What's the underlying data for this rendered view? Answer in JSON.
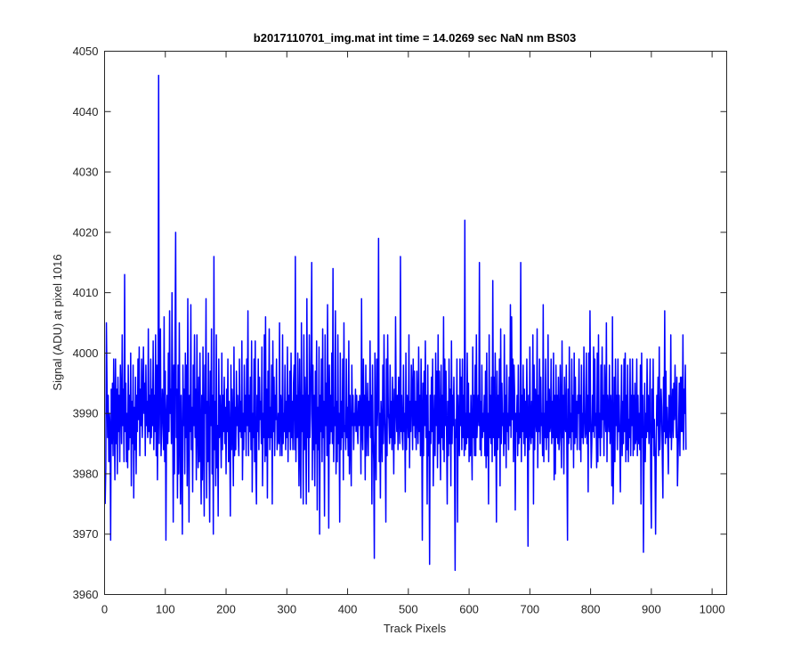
{
  "chart_data": {
    "type": "line",
    "title": "b2017110701_img.mat int time = 14.0269 sec  NaN nm BS03",
    "xlabel": "Track Pixels",
    "ylabel": "Signal (ADU) at pixel 1016",
    "xlim": [
      0,
      1024
    ],
    "ylim": [
      3960,
      4050
    ],
    "xticks": [
      0,
      100,
      200,
      300,
      400,
      500,
      600,
      700,
      800,
      900,
      1000
    ],
    "yticks": [
      3960,
      3970,
      3980,
      3990,
      4000,
      4010,
      4020,
      4030,
      4040,
      4050
    ],
    "grid": false,
    "series": [
      {
        "color": "#0000ff",
        "x_start": 1,
        "x_step": 1,
        "y": [
          3975,
          3981,
          4005,
          3995,
          3986,
          3993,
          3982,
          3990,
          3988,
          3969,
          3994,
          3985,
          3995,
          3983,
          3999,
          3990,
          3979,
          3999,
          3985,
          3994,
          3980,
          3996,
          3987,
          3993,
          3982,
          3998,
          3992,
          3985,
          4003,
          3988,
          3994,
          3982,
          4013,
          3987,
          3995,
          3982,
          3990,
          3981,
          3998,
          3984,
          3993,
          3986,
          4000,
          3978,
          3992,
          3985,
          3998,
          3976,
          3991,
          3984,
          3996,
          3980,
          3993,
          3987,
          3999,
          3989,
          4001,
          3983,
          3994,
          3988,
          3999,
          3986,
          3992,
          4001,
          3990,
          3995,
          3983,
          3998,
          3988,
          3992,
          3986,
          4004,
          3987,
          3993,
          3985,
          3999,
          3986,
          3994,
          3988,
          4002,
          3984,
          3993,
          3987,
          4003,
          3983,
          3998,
          3979,
          3991,
          4046,
          3985,
          3996,
          4004,
          3983,
          3988,
          3994,
          3990,
          3984,
          4006,
          3982,
          3997,
          3969,
          3989,
          3993,
          3985,
          4000,
          3987,
          4007,
          3990,
          3994,
          3985,
          4010,
          3992,
          3972,
          3998,
          3980,
          4002,
          4020,
          3986,
          3994,
          3976,
          3998,
          3980,
          4005,
          3987,
          3975,
          3993,
          3984,
          3970,
          3998,
          3988,
          3994,
          3980,
          4000,
          3986,
          3998,
          3978,
          4009,
          3989,
          3972,
          3993,
          3987,
          4008,
          3984,
          3991,
          3977,
          3998,
          3988,
          4003,
          3986,
          3994,
          3979,
          4003,
          3988,
          3981,
          3996,
          3982,
          4000,
          3986,
          3975,
          3993,
          3979,
          4001,
          3986,
          3973,
          3998,
          3990,
          4009,
          3976,
          3992,
          3982,
          4000,
          3984,
          3972,
          3997,
          3988,
          4004,
          3980,
          3993,
          3970,
          4016,
          3984,
          3992,
          3978,
          4003,
          3981,
          3988,
          3973,
          3999,
          3986,
          3993,
          3988,
          3981,
          4000,
          3984,
          3993,
          3987,
          3996,
          3985,
          3991,
          3980,
          3994,
          3987,
          3999,
          3982,
          3992,
          3986,
          3973,
          3998,
          3984,
          3994,
          3988,
          3978,
          4001,
          3983,
          3991,
          3984,
          3997,
          3988,
          3993,
          3986,
          3983,
          3999,
          3987,
          3992,
          3986,
          4002,
          3979,
          3990,
          3984,
          3998,
          3987,
          3993,
          3983,
          3999,
          3988,
          4007,
          3983,
          3993,
          3987,
          3996,
          3984,
          4002,
          3977,
          3990,
          3986,
          3999,
          3982,
          4002,
          3981,
          3975,
          3993,
          3987,
          3999,
          3984,
          3996,
          3989,
          3992,
          3985,
          4001,
          3978,
          3990,
          3986,
          4003,
          3982,
          4006,
          3983,
          3994,
          3976,
          3997,
          3986,
          4004,
          3984,
          3991,
          3986,
          3998,
          3975,
          4002,
          3987,
          3996,
          3983,
          3993,
          3989,
          3999,
          3984,
          3986,
          3990,
          3985,
          4005,
          3983,
          3993,
          3990,
          3983,
          4003,
          3985,
          3990,
          3987,
          3998,
          3984,
          3992,
          3986,
          4001,
          3982,
          3993,
          3987,
          3997,
          3984,
          4000,
          3986,
          3992,
          3984,
          3995,
          3998,
          3984,
          4016,
          3982,
          3993,
          3986,
          4000,
          3988,
          3978,
          3999,
          3985,
          3976,
          4005,
          3987,
          3993,
          3975,
          4003,
          3984,
          3996,
          3988,
          3975,
          4009,
          3986,
          3993,
          3977,
          4003,
          3986,
          3990,
          4000,
          4015,
          3979,
          3998,
          3984,
          3993,
          3978,
          3997,
          3985,
          4002,
          3974,
          3991,
          3984,
          4001,
          3970,
          3993,
          3987,
          3999,
          3982,
          4004,
          3986,
          3992,
          3973,
          4003,
          3988,
          3995,
          3983,
          4008,
          3990,
          3971,
          3998,
          3985,
          3993,
          3987,
          4000,
          3985,
          4014,
          3982,
          3991,
          3988,
          4007,
          3980,
          3992,
          3982,
          4003,
          3985,
          3990,
          3972,
          4000,
          3984,
          3992,
          3986,
          3999,
          3979,
          4005,
          3987,
          3988,
          3984,
          3999,
          3986,
          3991,
          3983,
          4002,
          3980,
          3993,
          3986,
          3978,
          3998,
          3988,
          3993,
          3984,
          3990,
          3988,
          3994,
          3987,
          3993,
          3988,
          3985,
          3992,
          3988,
          3993,
          3990,
          3980,
          4009,
          3987,
          3984,
          3999,
          3988,
          3993,
          3979,
          3998,
          3983,
          3989,
          3995,
          3983,
          3992,
          3988,
          4002,
          3986,
          3993,
          3975,
          3998,
          3986,
          3982,
          3966,
          4000,
          3986,
          3979,
          3999,
          3988,
          3993,
          4019,
          3982,
          3990,
          3976,
          3992,
          3988,
          3982,
          3998,
          3985,
          4003,
          3990,
          3985,
          3972,
          3999,
          3983,
          4003,
          3990,
          3989,
          3985,
          3998,
          3986,
          3992,
          3984,
          3996,
          3990,
          3980,
          3994,
          3985,
          4006,
          3991,
          3987,
          3993,
          3984,
          3996,
          3990,
          3985,
          4016,
          3987,
          3993,
          3986,
          3984,
          3998,
          3987,
          3990,
          3977,
          4000,
          3984,
          3993,
          3990,
          3986,
          4003,
          3981,
          3992,
          3987,
          3998,
          3994,
          3984,
          3999,
          3988,
          3997,
          3986,
          3992,
          3984,
          3997,
          3990,
          3985,
          4001,
          3987,
          3993,
          3983,
          3999,
          3989,
          3969,
          3995,
          3983,
          3997,
          3988,
          4002,
          3986,
          3993,
          3975,
          3998,
          3983,
          3987,
          3965,
          3993,
          3985,
          3996,
          3987,
          3999,
          3978,
          3987,
          3993,
          3983,
          4000,
          3988,
          3997,
          3981,
          4003,
          3985,
          3997,
          3988,
          3979,
          3998,
          3986,
          3993,
          3984,
          4006,
          3982,
          3999,
          3988,
          3997,
          3986,
          3975,
          3992,
          3983,
          3999,
          3985,
          3994,
          3978,
          4002,
          3985,
          3993,
          3988,
          3996,
          3983,
          3964,
          3989,
          3986,
          3999,
          3972,
          3993,
          3987,
          3983,
          3999,
          3988,
          3996,
          3984,
          3999,
          3986,
          3993,
          3983,
          4022,
          3984,
          3990,
          3985,
          4000,
          3986,
          3995,
          3982,
          3990,
          3983,
          3993,
          3986,
          3979,
          4001,
          3986,
          3993,
          3983,
          3998,
          3983,
          4003,
          3986,
          3990,
          3993,
          3988,
          4015,
          3984,
          3992,
          3983,
          3998,
          3986,
          3990,
          3987,
          3993,
          3983,
          3997,
          3981,
          4000,
          3983,
          3990,
          3975,
          4003,
          3986,
          3993,
          3985,
          3996,
          3982,
          4012,
          3986,
          3996,
          3983,
          4000,
          3988,
          3972,
          3997,
          3984,
          3993,
          3986,
          3999,
          3978,
          4004,
          3985,
          3995,
          3988,
          3990,
          3983,
          4003,
          3985,
          3993,
          3981,
          3998,
          3987,
          3990,
          3984,
          3996,
          3988,
          4008,
          3986,
          4006,
          3989,
          3999,
          3982,
          3998,
          3993,
          3974,
          3990,
          3987,
          3993,
          3983,
          3998,
          3985,
          3990,
          3986,
          4015,
          3982,
          3993,
          3987,
          3998,
          3985,
          3994,
          3983,
          3992,
          3986,
          3999,
          3988,
          3968,
          3993,
          3984,
          4001,
          3987,
          3985,
          3992,
          3986,
          4003,
          3975,
          3998,
          3984,
          3994,
          3989,
          3987,
          4004,
          3981,
          3993,
          3987,
          3999,
          3985,
          3996,
          3988,
          3990,
          3983,
          4008,
          3982,
          3990,
          3986,
          3999,
          3984,
          3992,
          3986,
          4003,
          3982,
          3994,
          3987,
          3988,
          3999,
          3985,
          3992,
          3986,
          4000,
          3979,
          3993,
          3980,
          3998,
          3986,
          3993,
          3985,
          3996,
          3984,
          3986,
          3998,
          3989,
          3981,
          4002,
          3986,
          3993,
          3980,
          3996,
          3988,
          3987,
          3998,
          3983,
          3969,
          3994,
          3985,
          4001,
          3986,
          3990,
          3984,
          3999,
          3987,
          3993,
          3981,
          4000,
          3985,
          3996,
          3986,
          3992,
          3984,
          3993,
          3990,
          3999,
          3984,
          3993,
          3982,
          3998,
          3986,
          3990,
          3985,
          4001,
          3990,
          3986,
          3987,
          4000,
          3985,
          3993,
          3977,
          4000,
          3987,
          4007,
          3990,
          3981,
          3985,
          3993,
          3987,
          4001,
          3986,
          3999,
          3988,
          3990,
          3981,
          4000,
          3982,
          4003,
          3986,
          3990,
          3983,
          3998,
          3986,
          4001,
          3989,
          3993,
          3983,
          3998,
          3990,
          3987,
          4005,
          3982,
          3993,
          3990,
          3987,
          3998,
          3985,
          3993,
          3990,
          3978,
          4006,
          3975,
          3983,
          3996,
          3982,
          3999,
          3988,
          3993,
          3984,
          3999,
          3987,
          3993,
          3986,
          3977,
          3989,
          3998,
          3983,
          3992,
          3985,
          3999,
          3987,
          4000,
          3982,
          3993,
          3984,
          3998,
          3982,
          3989,
          3986,
          3999,
          3983,
          3993,
          3988,
          3999,
          3983,
          3993,
          3984,
          3995,
          3985,
          3986,
          3999,
          3983,
          3993,
          3985,
          3990,
          3984,
          3998,
          3975,
          4000,
          3986,
          3993,
          3967,
          3983,
          3995,
          3982,
          3990,
          3986,
          3999,
          3987,
          3993,
          3985,
          3990,
          3999,
          3979,
          3971,
          3994,
          3986,
          3999,
          3983,
          3989,
          3982,
          3970,
          3984,
          3993,
          3988,
          3996,
          3983,
          4001,
          3984,
          3988,
          3994,
          3991,
          3983,
          3976,
          3996,
          3987,
          4007,
          3985,
          3997,
          3986,
          3991,
          3986,
          3980,
          3993,
          3990,
          3986,
          4003,
          3984,
          3989,
          3994,
          3986,
          3995,
          3989,
          3998,
          3991,
          3986,
          3996,
          3978,
          3983,
          3988,
          3995,
          3983,
          3996,
          3987,
          3996,
          3987,
          4003,
          3984,
          3994,
          3990,
          3998,
          3984
        ]
      }
    ]
  }
}
